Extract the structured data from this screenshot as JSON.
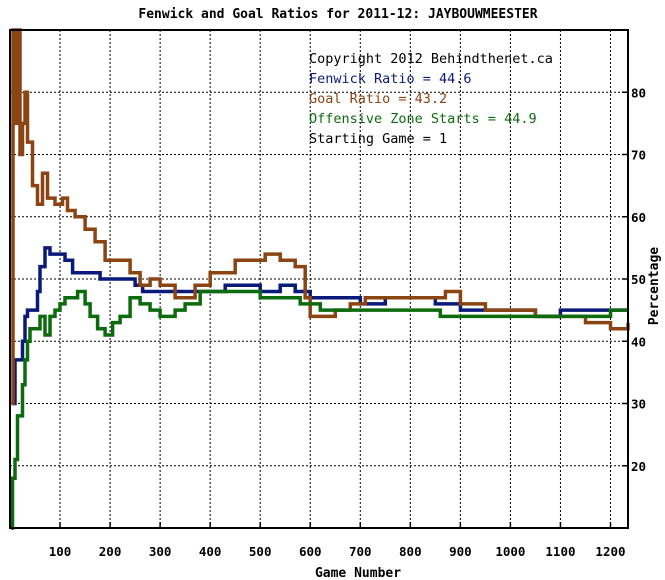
{
  "chart_data": {
    "type": "line",
    "title": "Fenwick and Goal Ratios for 2011-12: JAYBOUWMEESTER",
    "xlabel": "Game Number",
    "ylabel": "Percentage",
    "xlim": [
      0,
      1235
    ],
    "ylim": [
      10,
      90
    ],
    "x_ticks": [
      100,
      200,
      300,
      400,
      500,
      600,
      700,
      800,
      900,
      1000,
      1100,
      1200
    ],
    "y_ticks": [
      20,
      30,
      40,
      50,
      60,
      70,
      80
    ],
    "grid": true,
    "legend_position": "top-right",
    "annotations": [
      {
        "text": "Copyright 2012 Behindthenet.ca",
        "color": "#000000"
      },
      {
        "text": "Fenwick Ratio = 44.6",
        "color": "#0a1a7a"
      },
      {
        "text": "Goal Ratio = 43.2",
        "color": "#8b4513"
      },
      {
        "text": "Offensive Zone Starts = 44.9",
        "color": "#0c6b0c"
      },
      {
        "text": "Starting Game = 1",
        "color": "#000000"
      }
    ],
    "series": [
      {
        "name": "Fenwick Ratio",
        "color": "#0a1a7a",
        "points": [
          [
            5,
            30
          ],
          [
            10,
            37
          ],
          [
            20,
            37
          ],
          [
            25,
            40
          ],
          [
            30,
            44
          ],
          [
            35,
            45
          ],
          [
            45,
            45
          ],
          [
            55,
            48
          ],
          [
            60,
            52
          ],
          [
            70,
            55
          ],
          [
            80,
            54
          ],
          [
            100,
            54
          ],
          [
            110,
            53
          ],
          [
            125,
            51
          ],
          [
            150,
            51
          ],
          [
            180,
            50
          ],
          [
            210,
            50
          ],
          [
            250,
            49
          ],
          [
            265,
            48
          ],
          [
            300,
            48
          ],
          [
            330,
            48
          ],
          [
            360,
            48
          ],
          [
            400,
            48
          ],
          [
            430,
            49
          ],
          [
            460,
            49
          ],
          [
            500,
            48
          ],
          [
            540,
            49
          ],
          [
            570,
            48
          ],
          [
            600,
            47
          ],
          [
            650,
            47
          ],
          [
            700,
            46
          ],
          [
            750,
            47
          ],
          [
            800,
            47
          ],
          [
            850,
            46
          ],
          [
            900,
            45
          ],
          [
            950,
            45
          ],
          [
            1000,
            45
          ],
          [
            1050,
            44
          ],
          [
            1100,
            45
          ],
          [
            1150,
            45
          ],
          [
            1200,
            45
          ],
          [
            1235,
            45
          ]
        ]
      },
      {
        "name": "Goal Ratio",
        "color": "#8b4513",
        "points": [
          [
            3,
            30
          ],
          [
            6,
            90
          ],
          [
            10,
            75
          ],
          [
            14,
            90
          ],
          [
            20,
            70
          ],
          [
            25,
            75
          ],
          [
            30,
            80
          ],
          [
            35,
            72
          ],
          [
            45,
            65
          ],
          [
            55,
            62
          ],
          [
            65,
            67
          ],
          [
            75,
            63
          ],
          [
            90,
            62
          ],
          [
            105,
            63
          ],
          [
            115,
            61
          ],
          [
            130,
            60
          ],
          [
            150,
            58
          ],
          [
            170,
            56
          ],
          [
            190,
            53
          ],
          [
            215,
            53
          ],
          [
            240,
            51
          ],
          [
            260,
            49
          ],
          [
            280,
            50
          ],
          [
            300,
            49
          ],
          [
            330,
            47
          ],
          [
            350,
            47
          ],
          [
            370,
            49
          ],
          [
            400,
            51
          ],
          [
            420,
            51
          ],
          [
            450,
            53
          ],
          [
            480,
            53
          ],
          [
            510,
            54
          ],
          [
            540,
            53
          ],
          [
            570,
            52
          ],
          [
            590,
            47
          ],
          [
            600,
            44
          ],
          [
            620,
            44
          ],
          [
            650,
            45
          ],
          [
            680,
            46
          ],
          [
            710,
            47
          ],
          [
            750,
            47
          ],
          [
            800,
            47
          ],
          [
            840,
            47
          ],
          [
            870,
            48
          ],
          [
            900,
            46
          ],
          [
            950,
            45
          ],
          [
            1000,
            45
          ],
          [
            1050,
            44
          ],
          [
            1100,
            44
          ],
          [
            1150,
            43
          ],
          [
            1200,
            42
          ],
          [
            1220,
            42
          ],
          [
            1235,
            43
          ]
        ]
      },
      {
        "name": "Offensive Zone Starts",
        "color": "#0c6b0c",
        "points": [
          [
            2,
            10
          ],
          [
            5,
            18
          ],
          [
            10,
            21
          ],
          [
            15,
            28
          ],
          [
            20,
            28
          ],
          [
            25,
            33
          ],
          [
            30,
            37
          ],
          [
            35,
            40
          ],
          [
            40,
            42
          ],
          [
            50,
            42
          ],
          [
            60,
            44
          ],
          [
            70,
            41
          ],
          [
            80,
            44
          ],
          [
            90,
            45
          ],
          [
            100,
            46
          ],
          [
            110,
            47
          ],
          [
            120,
            47
          ],
          [
            135,
            48
          ],
          [
            150,
            46
          ],
          [
            160,
            44
          ],
          [
            175,
            42
          ],
          [
            190,
            41
          ],
          [
            205,
            43
          ],
          [
            220,
            44
          ],
          [
            240,
            47
          ],
          [
            260,
            46
          ],
          [
            280,
            45
          ],
          [
            300,
            44
          ],
          [
            330,
            45
          ],
          [
            350,
            46
          ],
          [
            380,
            48
          ],
          [
            420,
            48
          ],
          [
            460,
            48
          ],
          [
            500,
            47
          ],
          [
            540,
            47
          ],
          [
            580,
            46
          ],
          [
            620,
            45
          ],
          [
            660,
            45
          ],
          [
            700,
            45
          ],
          [
            740,
            45
          ],
          [
            780,
            45
          ],
          [
            820,
            45
          ],
          [
            860,
            44
          ],
          [
            900,
            44
          ],
          [
            950,
            44
          ],
          [
            1000,
            44
          ],
          [
            1050,
            44
          ],
          [
            1100,
            44
          ],
          [
            1150,
            44
          ],
          [
            1200,
            45
          ],
          [
            1235,
            45
          ]
        ]
      }
    ]
  }
}
